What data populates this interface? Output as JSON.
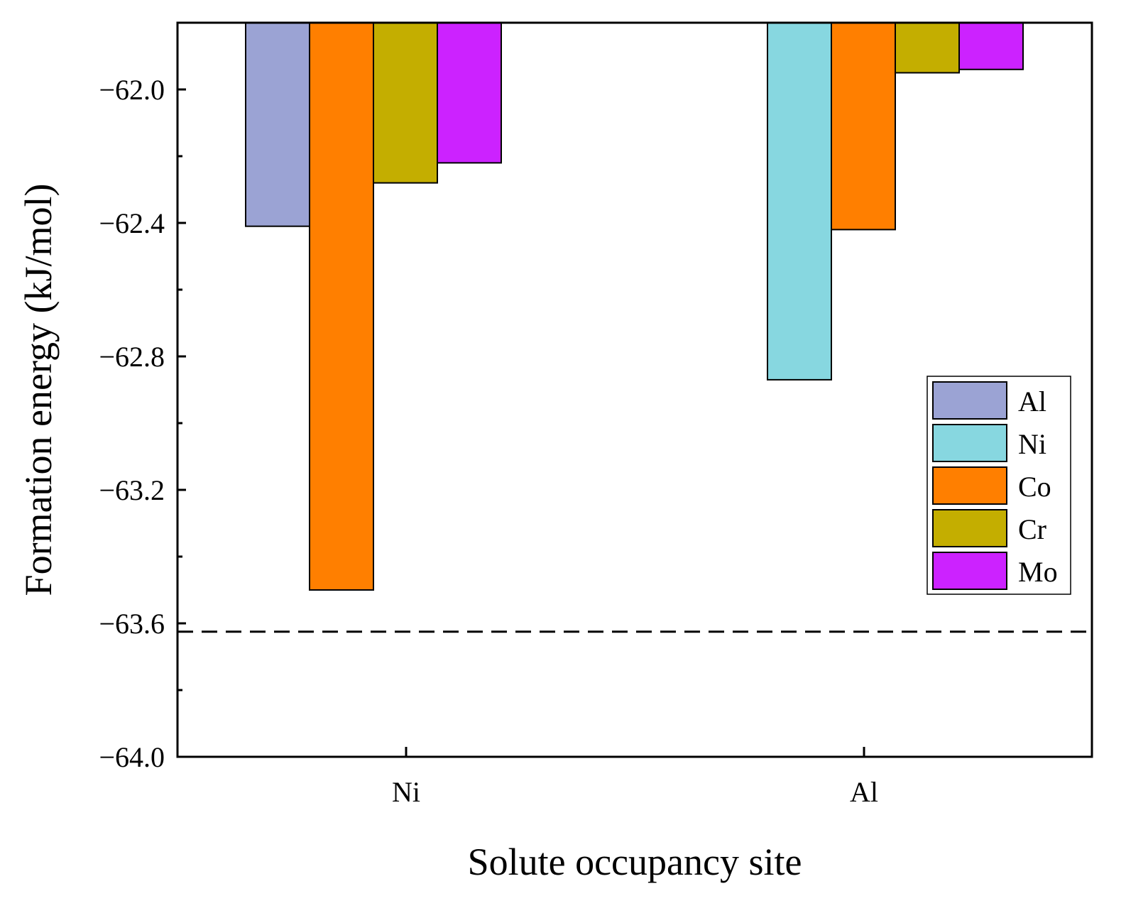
{
  "chart_data": {
    "type": "bar",
    "title": "",
    "xlabel": "Solute occupancy site",
    "ylabel": "Formation energy (kJ/mol)",
    "ylim": [
      -64.0,
      -61.8
    ],
    "y_ticks": [
      -62.0,
      -62.4,
      -62.8,
      -63.2,
      -63.6,
      -64.0
    ],
    "y_tick_labels": [
      "−62.0",
      "−62.4",
      "−62.8",
      "−63.2",
      "−63.6",
      "−64.0"
    ],
    "categories": [
      "Ni",
      "Al"
    ],
    "series": [
      {
        "name": "Al",
        "color": "#9ba3d4",
        "values": [
          -62.41,
          null
        ]
      },
      {
        "name": "Ni",
        "color": "#87d7e0",
        "values": [
          null,
          -62.87
        ]
      },
      {
        "name": "Co",
        "color": "#ff7f00",
        "values": [
          -63.5,
          -62.42
        ]
      },
      {
        "name": "Cr",
        "color": "#c4ae00",
        "values": [
          -62.28,
          -61.95
        ]
      },
      {
        "name": "Mo",
        "color": "#cc22ff",
        "values": [
          -62.22,
          -61.94
        ]
      }
    ],
    "reference_line": {
      "value": -63.625,
      "style": "dashed"
    },
    "legend_position": "right"
  }
}
